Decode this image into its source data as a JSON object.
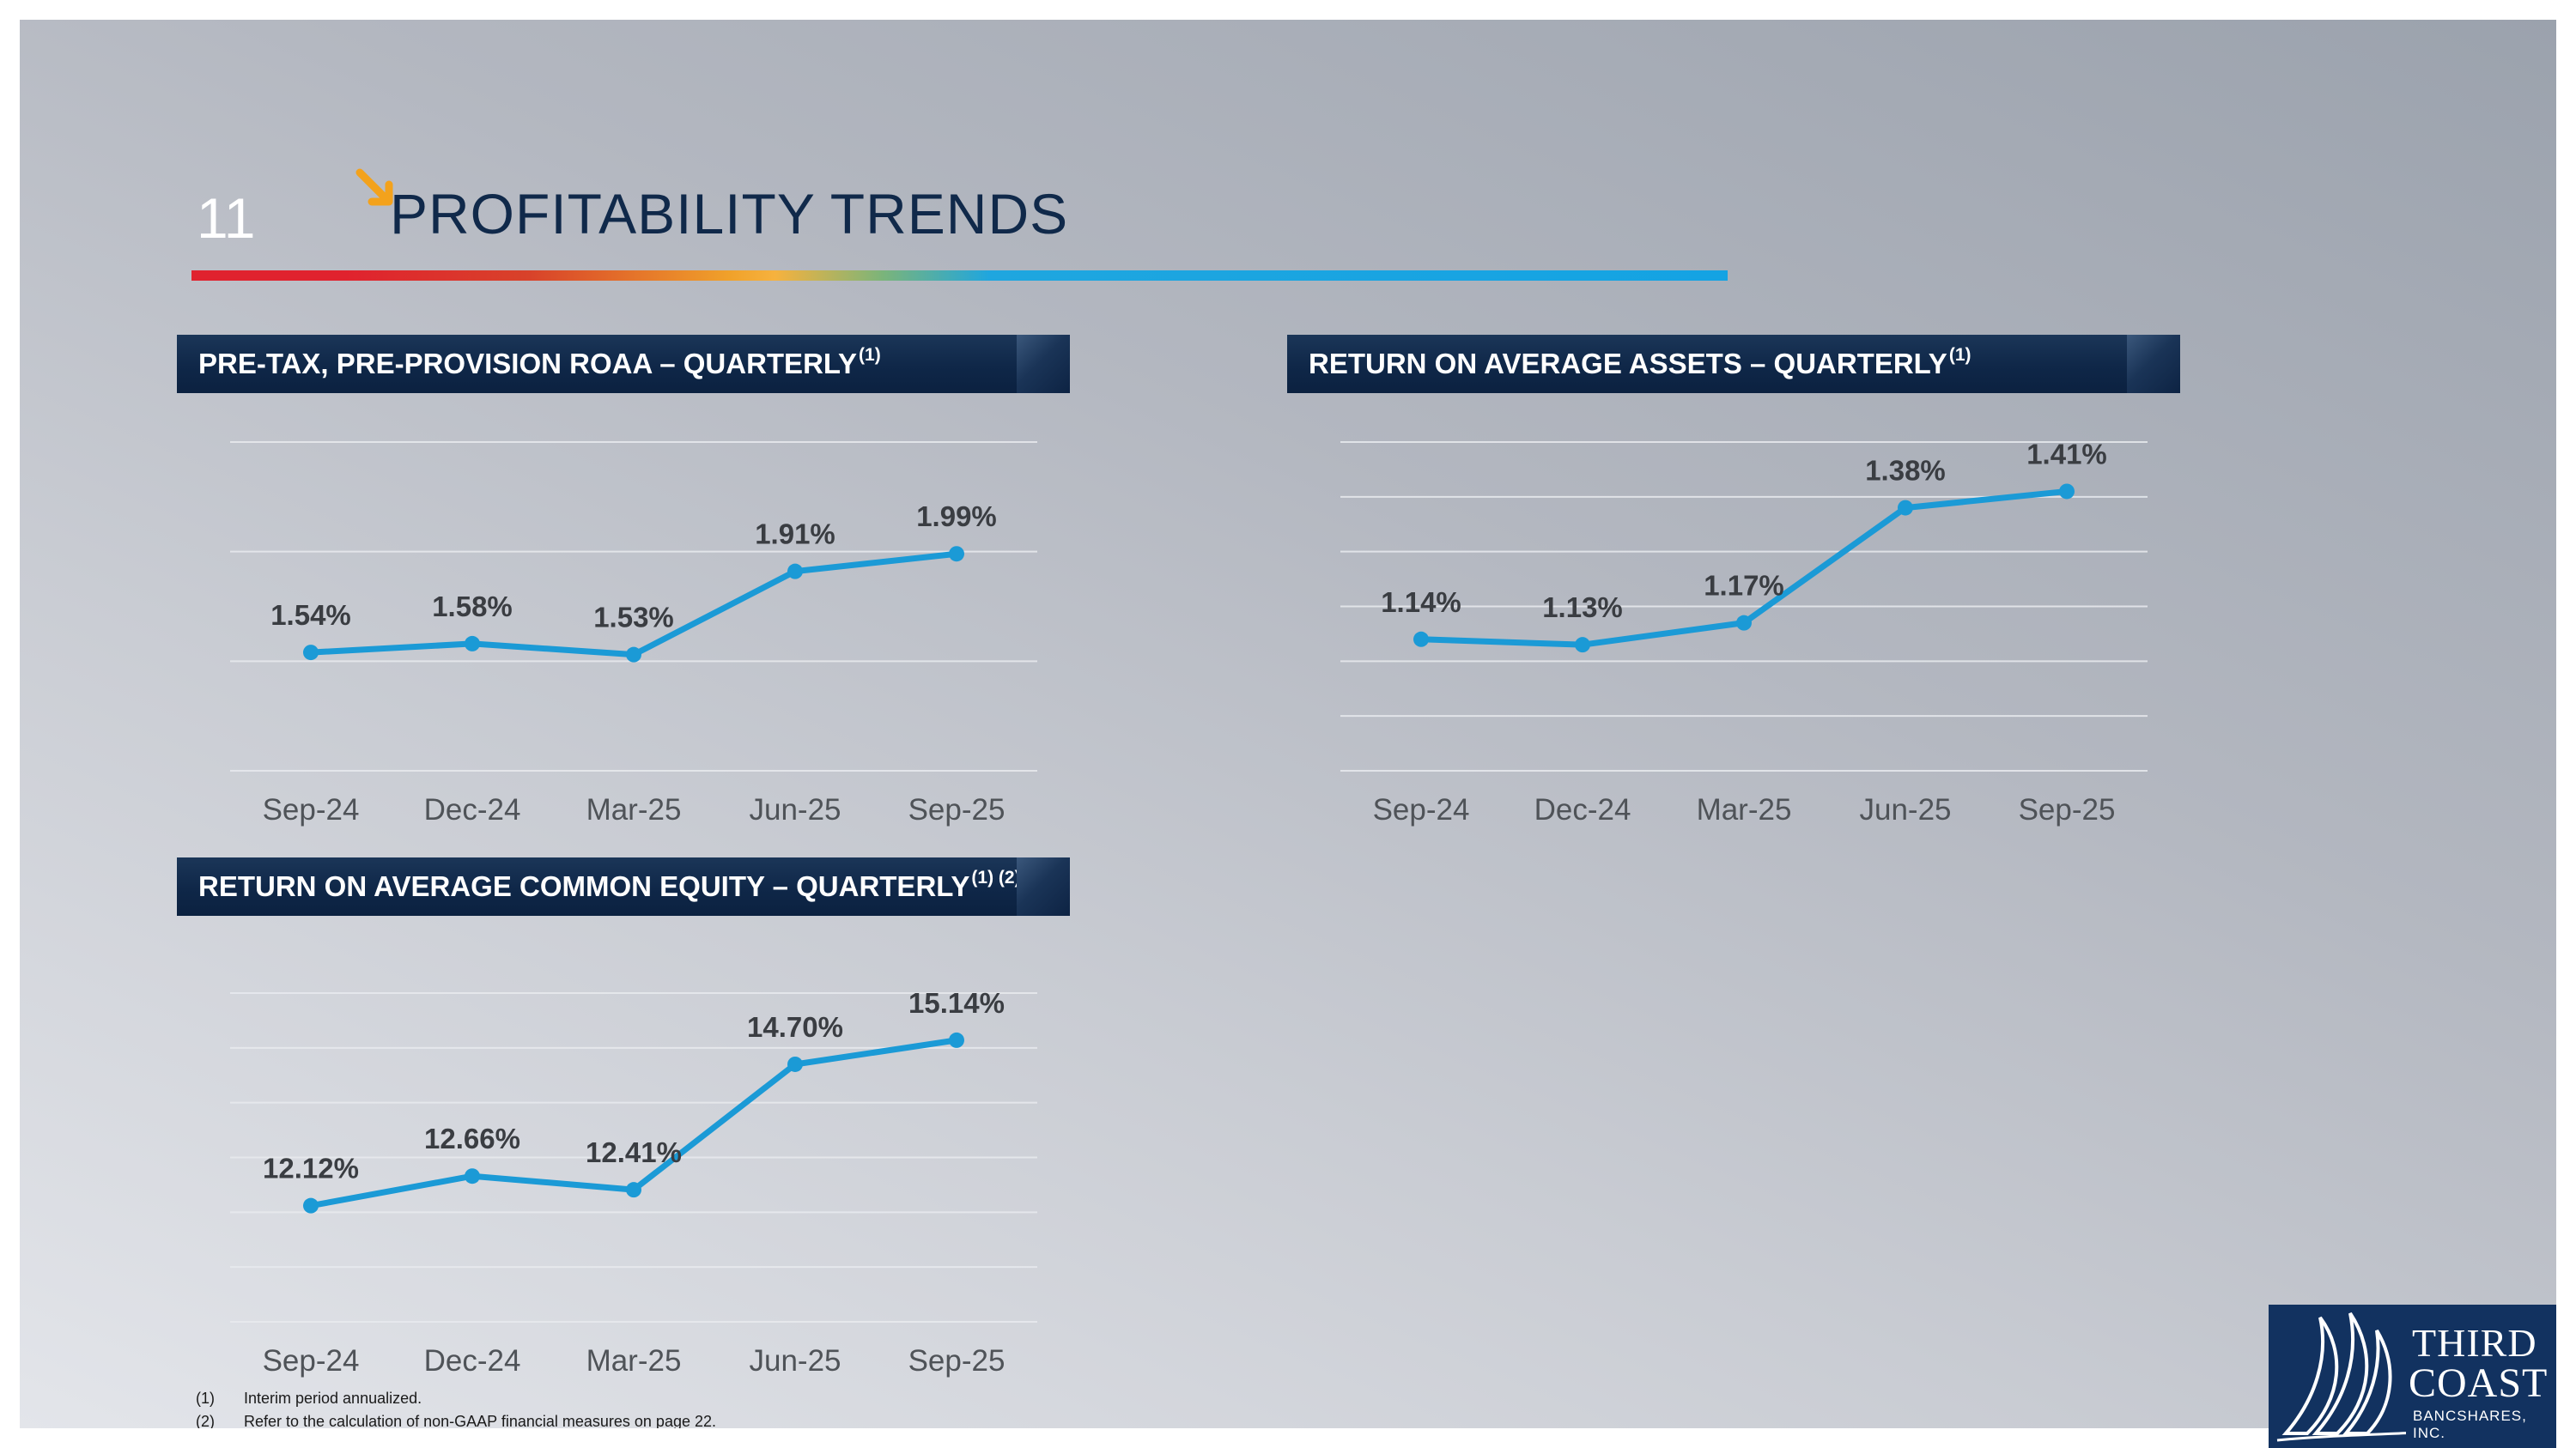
{
  "slide": {
    "number": "11",
    "title": "PROFITABILITY TRENDS",
    "arrow_icon": "down-right-arrow-icon",
    "accent_colors": [
      "#e0222e",
      "#f6b23e",
      "#14a3e3"
    ]
  },
  "footnotes": [
    {
      "num": "(1)",
      "text": "Interim period annualized."
    },
    {
      "num": "(2)",
      "text": "Refer to the calculation of non-GAAP financial measures on page 22."
    }
  ],
  "logo": {
    "line1": "THIRD",
    "line2": "COAST",
    "line3": "BANCSHARES, INC.",
    "icon": "sail-logo-icon",
    "background": "#123260"
  },
  "chart_data": [
    {
      "type": "line",
      "title": "PRE-TAX, PRE-PROVISION ROAA – QUARTERLY",
      "title_sup": "(1)",
      "categories": [
        "Sep-24",
        "Dec-24",
        "Mar-25",
        "Jun-25",
        "Sep-25"
      ],
      "values": [
        1.54,
        1.58,
        1.53,
        1.91,
        1.99
      ],
      "labels": [
        "1.54%",
        "1.58%",
        "1.53%",
        "1.91%",
        "1.99%"
      ],
      "ylim": [
        1.0,
        2.5
      ],
      "gridlines": [
        1.0,
        1.5,
        2.0,
        2.5
      ],
      "grid": true,
      "line_color": "#1b9ad6"
    },
    {
      "type": "line",
      "title": "RETURN ON AVERAGE ASSETS – QUARTERLY",
      "title_sup": "(1)",
      "categories": [
        "Sep-24",
        "Dec-24",
        "Mar-25",
        "Jun-25",
        "Sep-25"
      ],
      "values": [
        1.14,
        1.13,
        1.17,
        1.38,
        1.41
      ],
      "labels": [
        "1.14%",
        "1.13%",
        "1.17%",
        "1.38%",
        "1.41%"
      ],
      "ylim": [
        0.9,
        1.5
      ],
      "gridlines": [
        0.9,
        1.0,
        1.1,
        1.2,
        1.3,
        1.4,
        1.5
      ],
      "grid": true,
      "line_color": "#1b9ad6"
    },
    {
      "type": "line",
      "title": "RETURN ON AVERAGE COMMON EQUITY – QUARTERLY",
      "title_sup": "(1) (2)",
      "categories": [
        "Sep-24",
        "Dec-24",
        "Mar-25",
        "Jun-25",
        "Sep-25"
      ],
      "values": [
        12.12,
        12.66,
        12.41,
        14.7,
        15.14
      ],
      "labels": [
        "12.12%",
        "12.66%",
        "12.41%",
        "14.70%",
        "15.14%"
      ],
      "ylim": [
        10.0,
        16.0
      ],
      "gridlines": [
        10.0,
        11.0,
        12.0,
        13.0,
        14.0,
        15.0,
        16.0
      ],
      "grid": true,
      "line_color": "#1b9ad6"
    }
  ]
}
